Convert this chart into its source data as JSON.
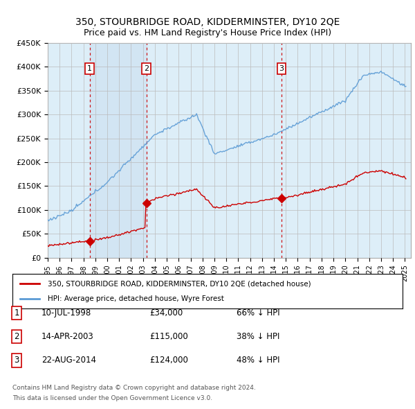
{
  "title": "350, STOURBRIDGE ROAD, KIDDERMINSTER, DY10 2QE",
  "subtitle": "Price paid vs. HM Land Registry's House Price Index (HPI)",
  "legend_line1": "350, STOURBRIDGE ROAD, KIDDERMINSTER, DY10 2QE (detached house)",
  "legend_line2": "HPI: Average price, detached house, Wyre Forest",
  "transactions": [
    {
      "num": 1,
      "date_str": "10-JUL-1998",
      "year": 1998.53,
      "price": 34000,
      "label": "66% ↓ HPI"
    },
    {
      "num": 2,
      "date_str": "14-APR-2003",
      "year": 2003.28,
      "price": 115000,
      "label": "38% ↓ HPI"
    },
    {
      "num": 3,
      "date_str": "22-AUG-2014",
      "year": 2014.64,
      "price": 124000,
      "label": "48% ↓ HPI"
    }
  ],
  "footnote1": "Contains HM Land Registry data © Crown copyright and database right 2024.",
  "footnote2": "This data is licensed under the Open Government Licence v3.0.",
  "hpi_color": "#5b9bd5",
  "price_color": "#cc0000",
  "marker_color": "#cc0000",
  "vline_color": "#cc0000",
  "bg_chart": "#ddeeff",
  "background_color": "#ffffff",
  "grid_color": "#bbbbbb",
  "ylim": [
    0,
    450000
  ],
  "xlim_start": 1995.0,
  "xlim_end": 2025.5
}
